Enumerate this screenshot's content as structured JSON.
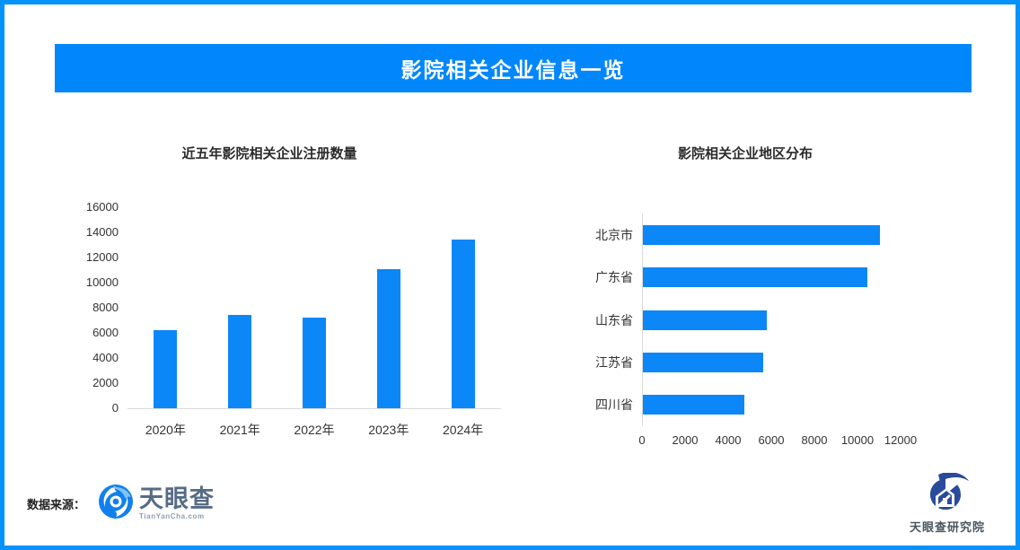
{
  "page": {
    "border_color": "#0592FB",
    "background": "#FFFFFF"
  },
  "banner": {
    "title": "影院相关企业信息一览",
    "bg_color": "#0187FB",
    "text_color": "#FFFFFF"
  },
  "chart_data": [
    {
      "type": "bar",
      "orientation": "vertical",
      "title": "近五年影院相关企业注册数量",
      "categories": [
        "2020年",
        "2021年",
        "2022年",
        "2023年",
        "2024年"
      ],
      "values": [
        6200,
        7400,
        7250,
        11100,
        13400
      ],
      "xlabel": "",
      "ylabel": "",
      "ylim": [
        0,
        16000
      ],
      "ytick_step": 2000,
      "bar_color": "#0B87F8",
      "grid": false,
      "legend": false
    },
    {
      "type": "bar",
      "orientation": "horizontal",
      "title": "影院相关企业地区分布",
      "categories": [
        "北京市",
        "广东省",
        "山东省",
        "江苏省",
        "四川省"
      ],
      "values": [
        11000,
        10400,
        5750,
        5600,
        4700
      ],
      "xlabel": "",
      "ylabel": "",
      "xlim": [
        0,
        12000
      ],
      "xtick_step": 2000,
      "bar_color": "#0B87F8",
      "grid": false,
      "legend": false
    }
  ],
  "footer": {
    "source_label": "数据来源：",
    "tyc_logo": {
      "name": "天眼查",
      "domain": "TianYanCha.com"
    },
    "research_logo": {
      "name": "天眼查研究院"
    }
  }
}
